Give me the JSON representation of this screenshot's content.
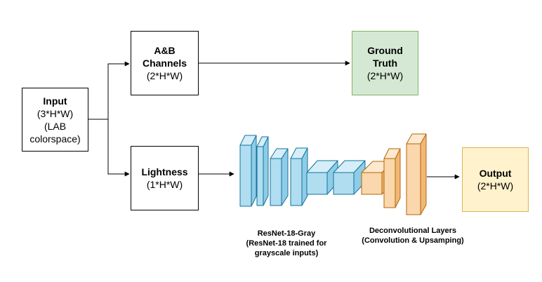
{
  "input": {
    "title": "Input",
    "line1": "(3*H*W)",
    "line2": "(LAB",
    "line3": "colorspace)"
  },
  "ab": {
    "title1": "A&B",
    "title2": "Channels",
    "dims": "(2*H*W)"
  },
  "ground_truth": {
    "title1": "Ground",
    "title2": "Truth",
    "dims": "(2*H*W)"
  },
  "lightness": {
    "title": "Lightness",
    "dims": "(1*H*W)"
  },
  "output": {
    "title": "Output",
    "dims": "(2*H*W)"
  },
  "resnet_caption": {
    "line1": "ResNet-18-Gray",
    "line2": "(ResNet-18 trained for",
    "line3": "grayscale inputs)"
  },
  "deconv_caption": {
    "line1": "Deconvolutional Layers",
    "line2": "(Convolution & Upsamping)"
  },
  "colors": {
    "resnet_fill": "#b1ddf0",
    "resnet_stroke": "#10739e",
    "deconv_fill": "#fad7ac",
    "deconv_stroke": "#b46504",
    "ground_truth_fill": "#d5e8d4",
    "output_fill": "#fff2cc"
  }
}
